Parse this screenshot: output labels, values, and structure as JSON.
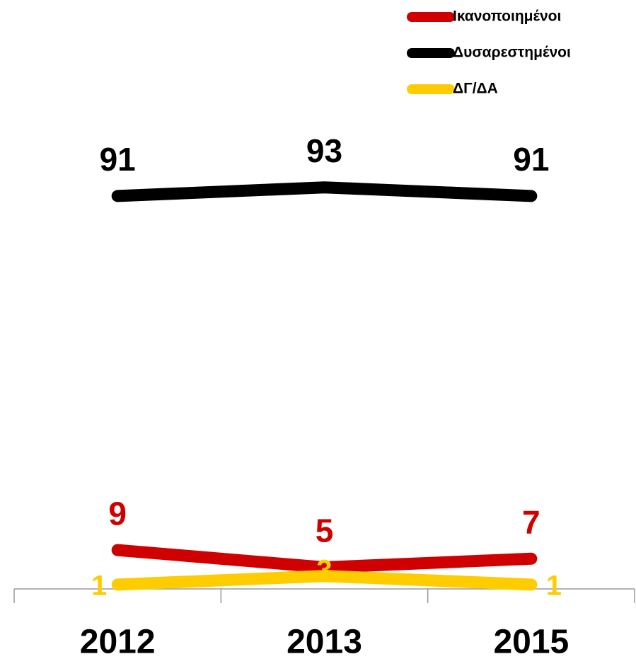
{
  "chart_data": {
    "type": "line",
    "categories": [
      "2012",
      "2013",
      "2015"
    ],
    "series": [
      {
        "name": "Ικανοποιημένοι",
        "color": "#d00000",
        "values": [
          9,
          5,
          7
        ]
      },
      {
        "name": "Δυσαρεστημένοι",
        "color": "#000000",
        "values": [
          91,
          93,
          91
        ]
      },
      {
        "name": "ΔΓ/ΔΑ",
        "color": "#ffcc00",
        "values": [
          1,
          3,
          1
        ]
      }
    ],
    "ylim": [
      0,
      120
    ],
    "legend": "top-right"
  }
}
